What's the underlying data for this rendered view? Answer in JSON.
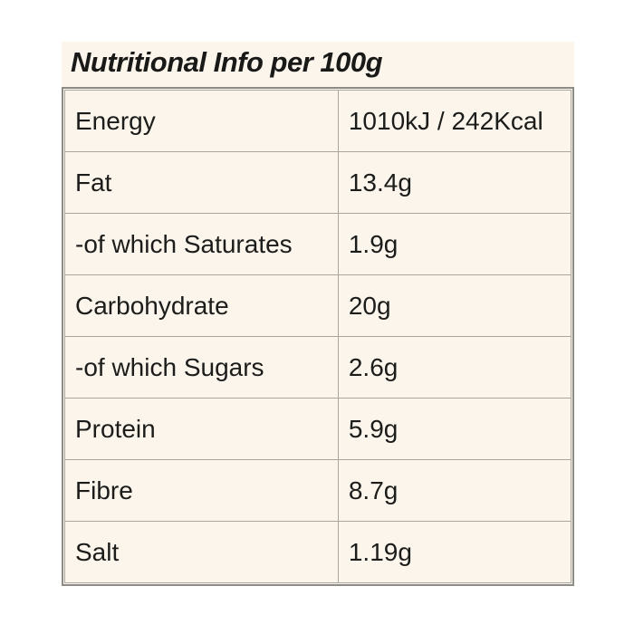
{
  "title": "Nutritional Info per 100g",
  "table": {
    "rows": [
      {
        "label": "Energy",
        "value": "1010kJ / 242Kcal"
      },
      {
        "label": "Fat",
        "value": "13.4g"
      },
      {
        "label": "-of which Saturates",
        "value": "1.9g"
      },
      {
        "label": "Carbohydrate",
        "value": "20g"
      },
      {
        "label": "-of which Sugars",
        "value": "2.6g"
      },
      {
        "label": "Protein",
        "value": "5.9g"
      },
      {
        "label": "Fibre",
        "value": "8.7g"
      },
      {
        "label": "Salt",
        "value": "1.19g"
      }
    ]
  },
  "colors": {
    "page_background": "#ffffff",
    "label_background": "#fbf5ec",
    "outer_border": "#8d8b85",
    "inner_border": "#a9a79f",
    "text": "#1c1c1a"
  }
}
